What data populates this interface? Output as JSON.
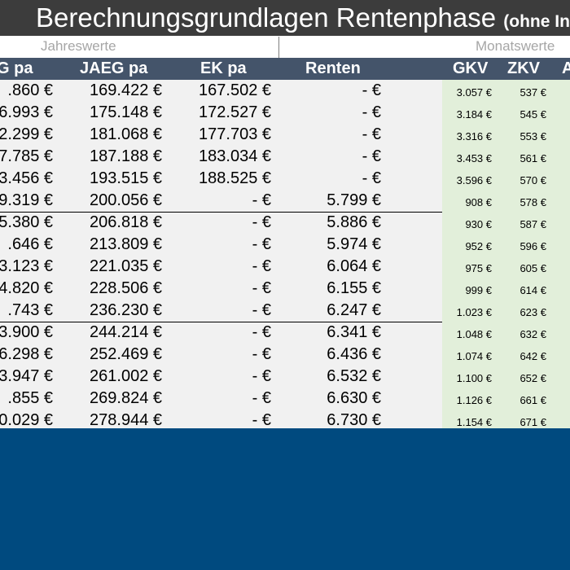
{
  "title": {
    "main": "Berechnungsgrundlagen Rentenphase",
    "suffix": "(ohne In"
  },
  "sections": {
    "left": "Jahreswerte",
    "right": "Monatswerte"
  },
  "headers": {
    "col1": "G pa",
    "col2": "JAEG pa",
    "col3": "EK pa",
    "col4": "Renten",
    "col5": "GKV",
    "col6": "ZKV",
    "col7": "A"
  },
  "rows": [
    {
      "c1": ".860 €",
      "c2": "169.422 €",
      "c3": "167.502 €",
      "c4": "- €",
      "c5": "3.057 €",
      "c6": "537 €"
    },
    {
      "c1": "6.993 €",
      "c2": "175.148 €",
      "c3": "172.527 €",
      "c4": "- €",
      "c5": "3.184 €",
      "c6": "545 €"
    },
    {
      "c1": "2.299 €",
      "c2": "181.068 €",
      "c3": "177.703 €",
      "c4": "- €",
      "c5": "3.316 €",
      "c6": "553 €"
    },
    {
      "c1": "7.785 €",
      "c2": "187.188 €",
      "c3": "183.034 €",
      "c4": "- €",
      "c5": "3.453 €",
      "c6": "561 €"
    },
    {
      "c1": "3.456 €",
      "c2": "193.515 €",
      "c3": "188.525 €",
      "c4": "- €",
      "c5": "3.596 €",
      "c6": "570 €"
    },
    {
      "c1": "9.319 €",
      "c2": "200.056 €",
      "c3": "- €",
      "c4": "5.799 €",
      "c5": "908 €",
      "c6": "578 €"
    },
    {
      "c1": "5.380 €",
      "c2": "206.818 €",
      "c3": "- €",
      "c4": "5.886 €",
      "c5": "930 €",
      "c6": "587 €"
    },
    {
      "c1": ".646 €",
      "c2": "213.809 €",
      "c3": "- €",
      "c4": "5.974 €",
      "c5": "952 €",
      "c6": "596 €"
    },
    {
      "c1": "3.123 €",
      "c2": "221.035 €",
      "c3": "- €",
      "c4": "6.064 €",
      "c5": "975 €",
      "c6": "605 €"
    },
    {
      "c1": "4.820 €",
      "c2": "228.506 €",
      "c3": "- €",
      "c4": "6.155 €",
      "c5": "999 €",
      "c6": "614 €"
    },
    {
      "c1": ".743 €",
      "c2": "236.230 €",
      "c3": "- €",
      "c4": "6.247 €",
      "c5": "1.023 €",
      "c6": "623 €"
    },
    {
      "c1": "3.900 €",
      "c2": "244.214 €",
      "c3": "- €",
      "c4": "6.341 €",
      "c5": "1.048 €",
      "c6": "632 €"
    },
    {
      "c1": "6.298 €",
      "c2": "252.469 €",
      "c3": "- €",
      "c4": "6.436 €",
      "c5": "1.074 €",
      "c6": "642 €"
    },
    {
      "c1": "3.947 €",
      "c2": "261.002 €",
      "c3": "- €",
      "c4": "6.532 €",
      "c5": "1.100 €",
      "c6": "652 €"
    },
    {
      "c1": ".855 €",
      "c2": "269.824 €",
      "c3": "- €",
      "c4": "6.630 €",
      "c5": "1.126 €",
      "c6": "661 €"
    },
    {
      "c1": "0.029 €",
      "c2": "278.944 €",
      "c3": "- €",
      "c4": "6.730 €",
      "c5": "1.154 €",
      "c6": "671 €"
    }
  ],
  "colors": {
    "title_bg": "#3c3c3c",
    "header_bg": "#44546a",
    "grey_cells": "#f1f1f1",
    "green_cells": "#e2efda",
    "outer_bg": "#004a7f"
  }
}
